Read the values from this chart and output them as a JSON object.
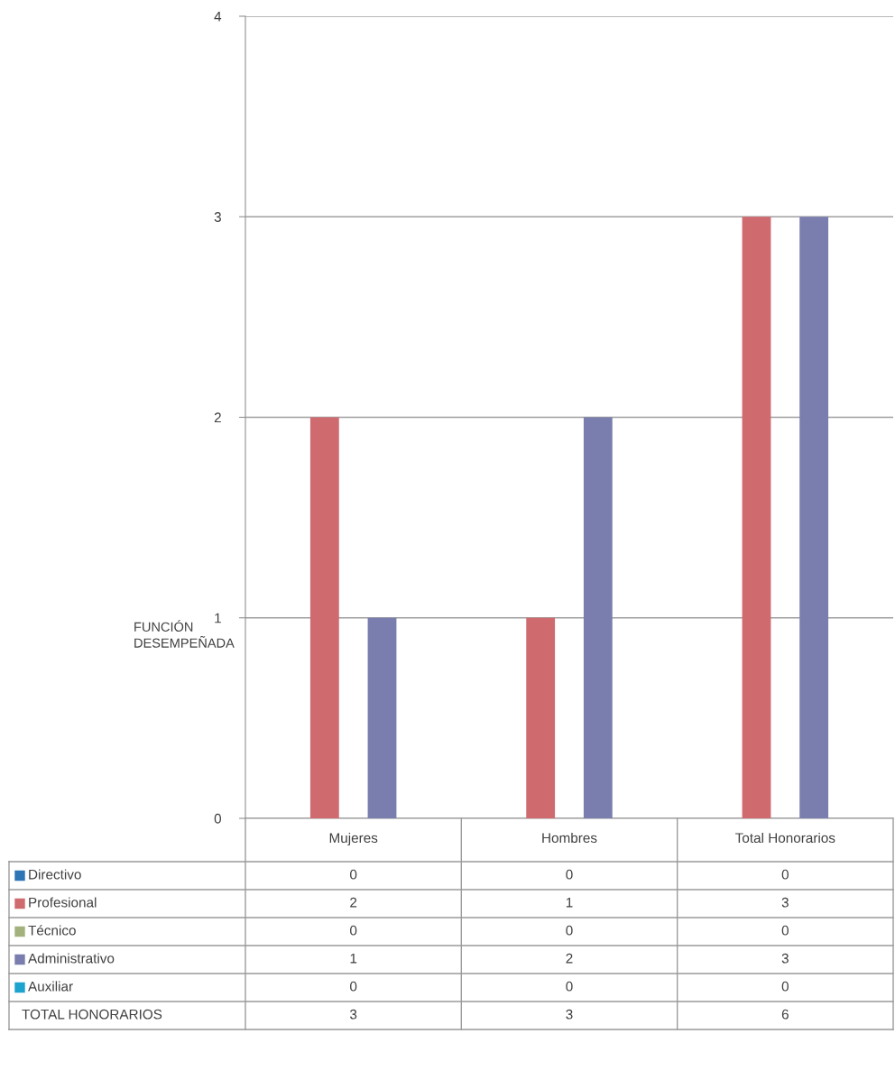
{
  "chart_data": {
    "type": "bar",
    "ylabel": "FUNCIÓN\nDESEMPEÑADA",
    "categories": [
      "Mujeres",
      "Hombres",
      "Total Honorarios"
    ],
    "series": [
      {
        "name": "Directivo",
        "color": "#2e75b6",
        "values": [
          0,
          0,
          0
        ]
      },
      {
        "name": "Profesional",
        "color": "#cf6a6e",
        "values": [
          2,
          1,
          3
        ]
      },
      {
        "name": "Técnico",
        "color": "#a3b27c",
        "values": [
          0,
          0,
          0
        ]
      },
      {
        "name": "Administrativo",
        "color": "#7a7eae",
        "values": [
          1,
          2,
          3
        ]
      },
      {
        "name": "Auxiliar",
        "color": "#1ea3cf",
        "values": [
          0,
          0,
          0
        ]
      }
    ],
    "annotations": [
      "TOTAL HONORARIOS",
      "3",
      "3",
      "6"
    ],
    "data_labels": true,
    "ylim": [
      0,
      4
    ],
    "yticks": [
      0,
      1,
      2,
      3,
      4
    ],
    "grid": "y",
    "legend": "bottom"
  }
}
